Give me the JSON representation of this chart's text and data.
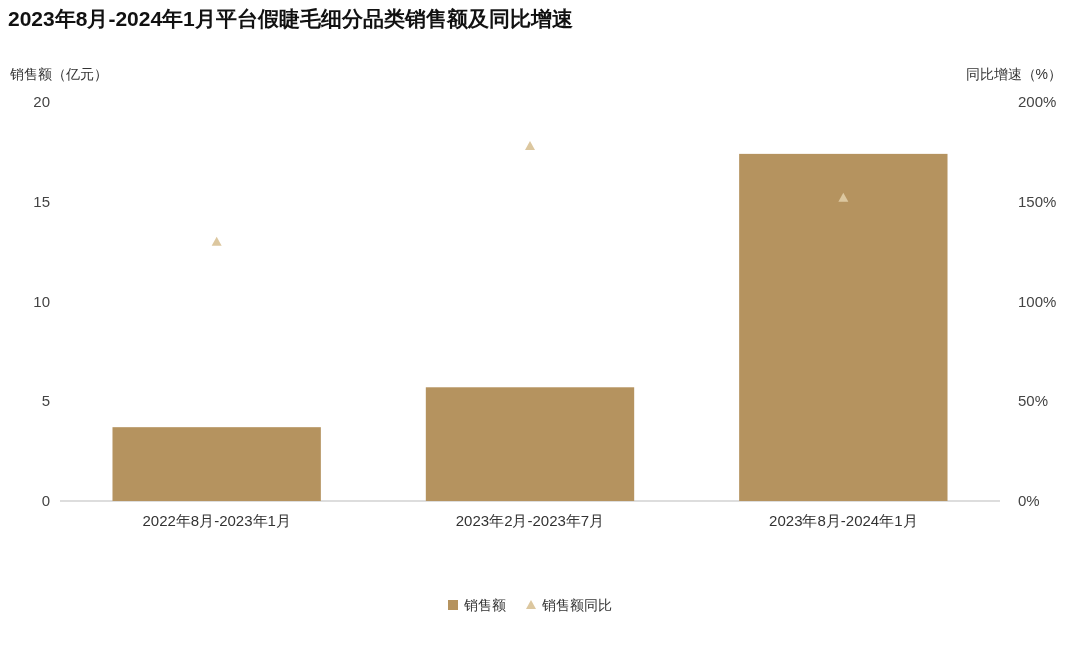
{
  "chart_data": {
    "type": "bar",
    "title": "2023年8月-2024年1月平台假睫毛细分品类销售额及同比增速",
    "ylabel": "销售额（亿元）",
    "y2label": "同比增速（%）",
    "categories": [
      "2022年8月-2023年1月",
      "2023年2月-2023年7月",
      "2023年8月-2024年1月"
    ],
    "series": [
      {
        "name": "销售额",
        "color": "#b5935f",
        "values": [
          3.7,
          5.7,
          17.4
        ]
      },
      {
        "name": "销售额同比",
        "type": "scatter",
        "axis": "y2",
        "marker": "triangle",
        "color": "#dcc79f",
        "values": [
          130,
          178,
          152
        ]
      }
    ],
    "ylim": [
      0,
      20
    ],
    "yticks": [
      0,
      5,
      10,
      15,
      20
    ],
    "y2lim": [
      0,
      200
    ],
    "y2ticks": [
      {
        "value": 0,
        "label": "0%"
      },
      {
        "value": 50,
        "label": "50%"
      },
      {
        "value": 100,
        "label": "100%"
      },
      {
        "value": 150,
        "label": "150%"
      },
      {
        "value": 200,
        "label": "200%"
      }
    ],
    "legend": "bottom",
    "grid": false
  }
}
